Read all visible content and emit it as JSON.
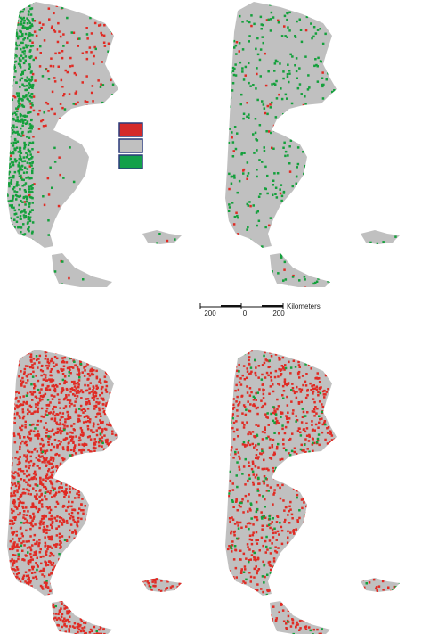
{
  "scale_bar": {
    "labels": [
      "200",
      "0",
      "200"
    ],
    "unit": "Kilometers"
  }
}
